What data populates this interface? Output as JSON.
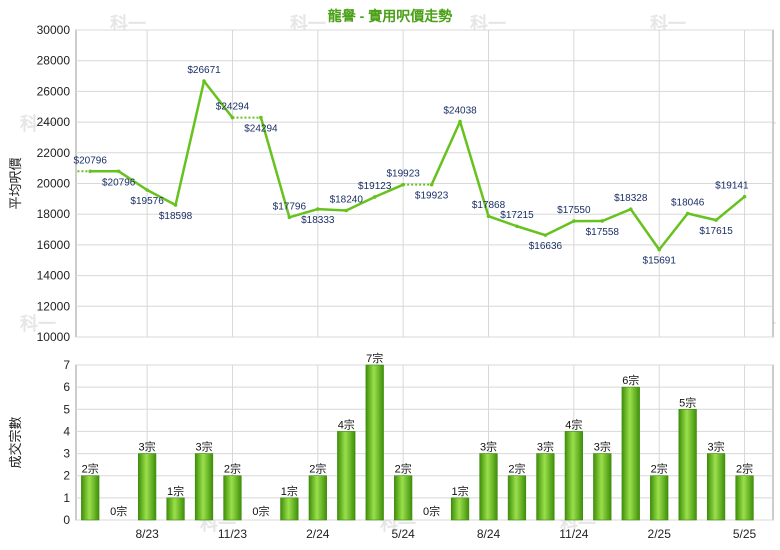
{
  "chart_data": [
    {
      "type": "line",
      "title": "龍譽 - 實用呎價走勢",
      "ylabel": "平均呎價",
      "ylim": [
        10000,
        30000
      ],
      "yticks": [
        10000,
        12000,
        14000,
        16000,
        18000,
        20000,
        22000,
        24000,
        26000,
        28000,
        30000
      ],
      "color": "#66c21e",
      "points": [
        {
          "y": 20796,
          "label": "$20796",
          "solid": false
        },
        {
          "y": 20796,
          "label": "$20796",
          "solid": true
        },
        {
          "y": 19576,
          "label": "$19576",
          "solid": true
        },
        {
          "y": 18598,
          "label": "$18598",
          "solid": true
        },
        {
          "y": 26671,
          "label": "$26671",
          "solid": true
        },
        {
          "y": 24294,
          "label": "$24294",
          "solid": true
        },
        {
          "y": 24294,
          "label": "$24294",
          "solid": false
        },
        {
          "y": 17796,
          "label": "$17796",
          "solid": true
        },
        {
          "y": 18333,
          "label": "$18333",
          "solid": true
        },
        {
          "y": 18240,
          "label": "$18240",
          "solid": true
        },
        {
          "y": 19123,
          "label": "$19123",
          "solid": true
        },
        {
          "y": 19923,
          "label": "$19923",
          "solid": true
        },
        {
          "y": 19923,
          "label": "$19923",
          "solid": false
        },
        {
          "y": 24038,
          "label": "$24038",
          "solid": true
        },
        {
          "y": 17868,
          "label": "$17868",
          "solid": true
        },
        {
          "y": 17215,
          "label": "$17215",
          "solid": true
        },
        {
          "y": 16636,
          "label": "$16636",
          "solid": true
        },
        {
          "y": 17550,
          "label": "$17550",
          "solid": true
        },
        {
          "y": 17558,
          "label": "$17558",
          "solid": true
        },
        {
          "y": 18328,
          "label": "$18328",
          "solid": true
        },
        {
          "y": 15691,
          "label": "$15691",
          "solid": true
        },
        {
          "y": 18046,
          "label": "$18046",
          "solid": true
        },
        {
          "y": 17615,
          "label": "$17615",
          "solid": true
        },
        {
          "y": 19141,
          "label": "$19141",
          "solid": true
        }
      ]
    },
    {
      "type": "bar",
      "ylabel": "成交宗數",
      "ylim": [
        0,
        7
      ],
      "yticks": [
        0,
        1,
        2,
        3,
        4,
        5,
        6,
        7
      ],
      "values": [
        2,
        0,
        3,
        1,
        3,
        2,
        0,
        1,
        2,
        4,
        7,
        2,
        0,
        1,
        3,
        2,
        3,
        4,
        3,
        6,
        2,
        5,
        3,
        2
      ],
      "labels": [
        "2宗",
        "0宗",
        "3宗",
        "1宗",
        "3宗",
        "2宗",
        "0宗",
        "1宗",
        "2宗",
        "4宗",
        "7宗",
        "2宗",
        "0宗",
        "1宗",
        "3宗",
        "2宗",
        "3宗",
        "4宗",
        "3宗",
        "6宗",
        "2宗",
        "5宗",
        "3宗",
        "2宗"
      ],
      "x_tick_labels": [
        {
          "index": 2,
          "label": "8/23"
        },
        {
          "index": 5,
          "label": "11/23"
        },
        {
          "index": 8,
          "label": "2/24"
        },
        {
          "index": 11,
          "label": "5/24"
        },
        {
          "index": 14,
          "label": "8/24"
        },
        {
          "index": 17,
          "label": "11/24"
        },
        {
          "index": 20,
          "label": "2/25"
        },
        {
          "index": 23,
          "label": "5/25"
        }
      ]
    }
  ],
  "watermark": "科一"
}
